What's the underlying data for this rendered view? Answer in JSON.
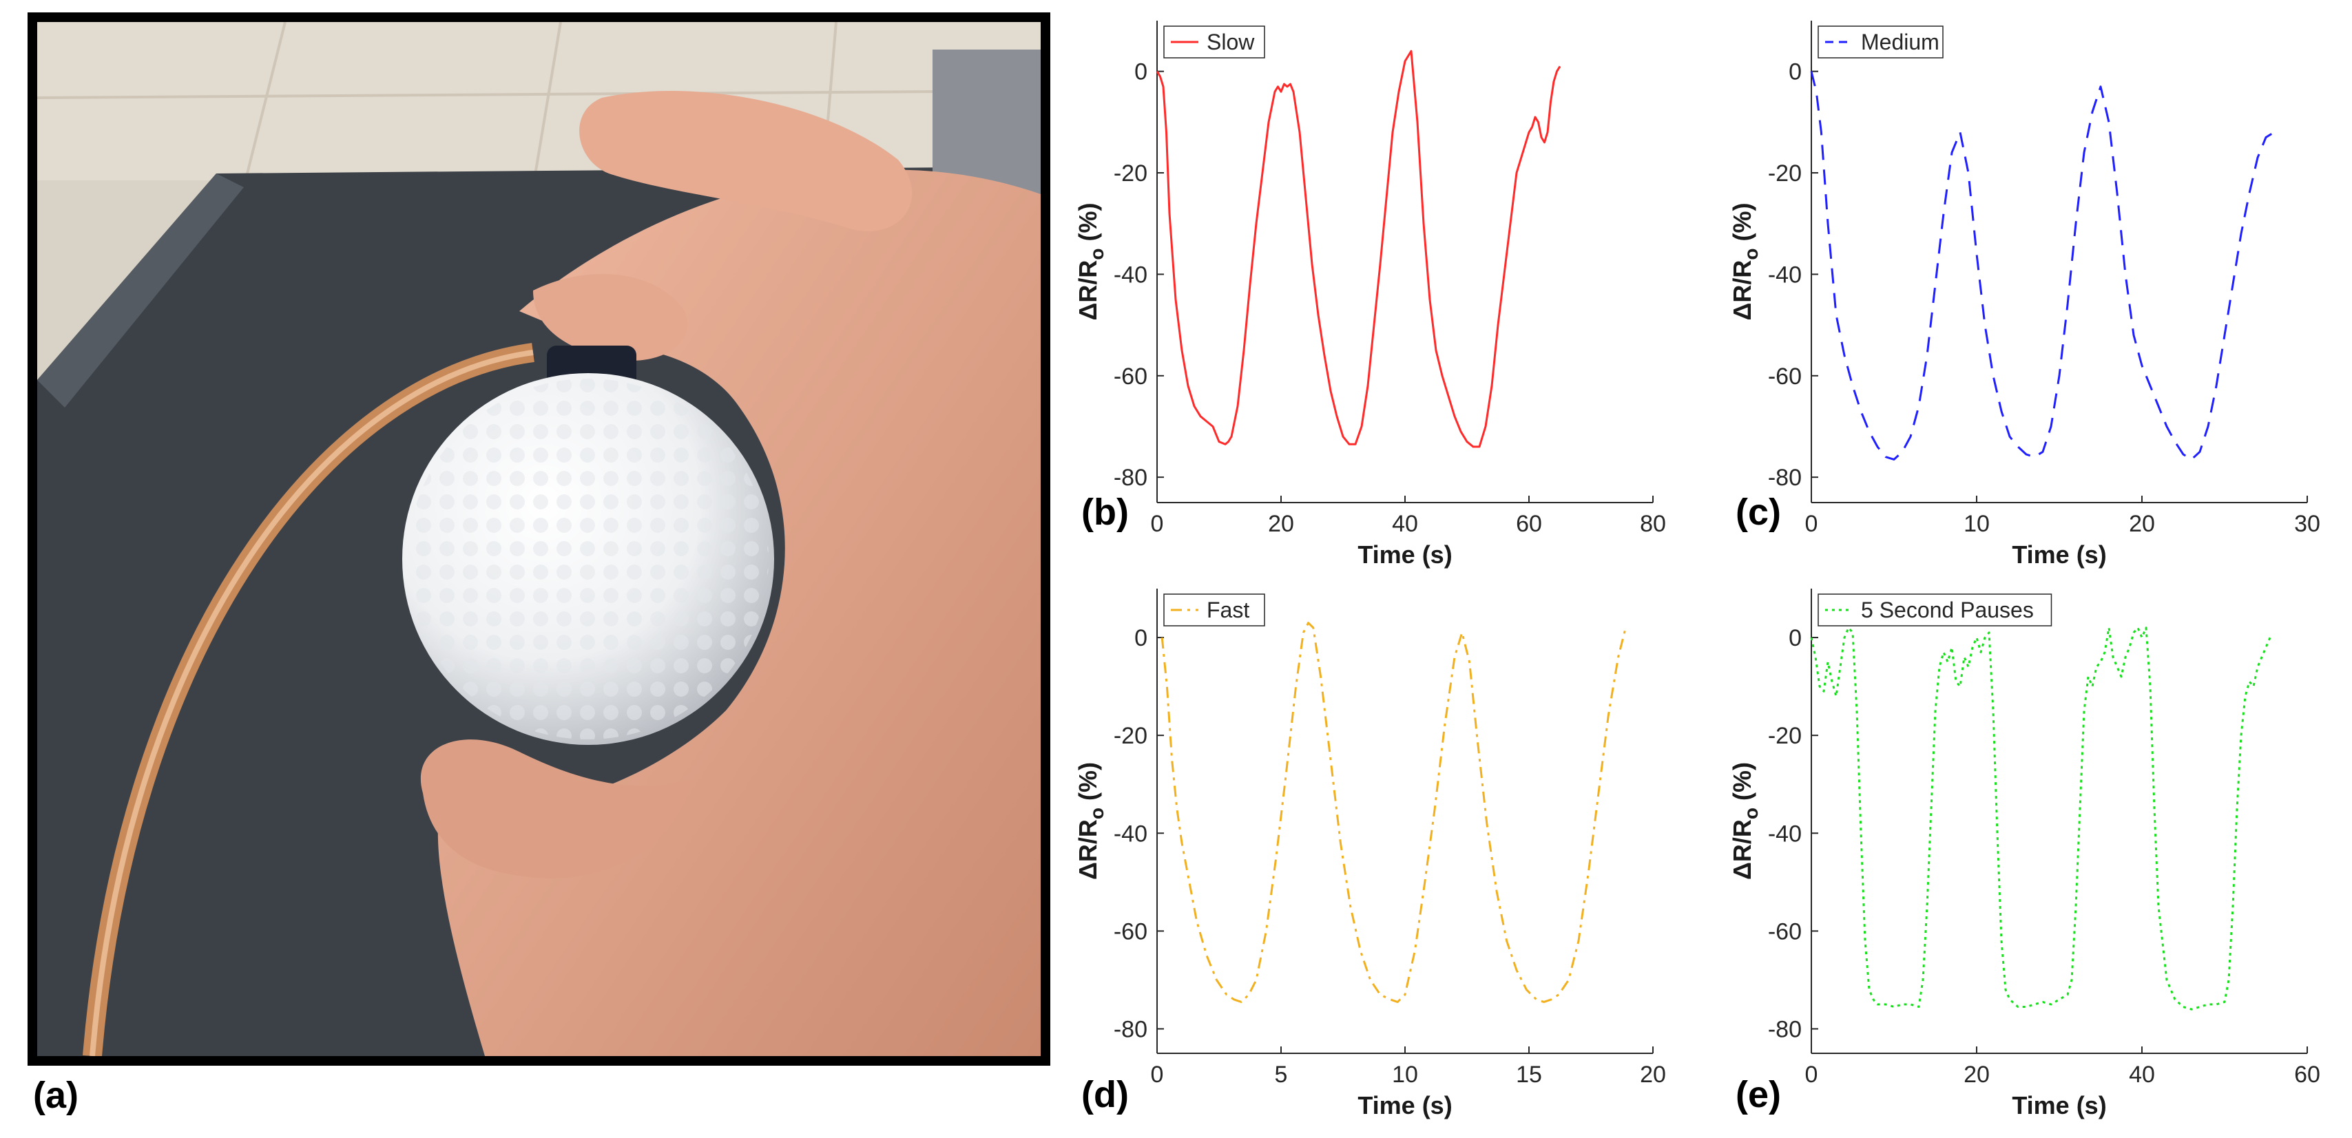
{
  "panels": {
    "a": "(a)",
    "b": "(b)",
    "c": "(c)",
    "d": "(d)",
    "e": "(e)"
  },
  "chart_data": [
    {
      "type": "line",
      "panel": "(b)",
      "xlabel": "Time (s)",
      "ylabel": "ΔR/R",
      "ylabel_sub": "o",
      "ylabel_unit": " (%)",
      "xlim": [
        0,
        80
      ],
      "ylim": [
        -85,
        10
      ],
      "xticks": [
        0,
        20,
        40,
        60,
        80
      ],
      "yticks": [
        0,
        -20,
        -40,
        -60,
        -80
      ],
      "grid": false,
      "legend": "top-left",
      "color": "#ff2a2a",
      "dash": "solid",
      "series": [
        {
          "name": "Slow",
          "x": [
            0,
            0.5,
            1,
            1.5,
            2,
            3,
            4,
            5,
            6,
            7,
            8,
            9,
            10,
            11,
            11.5,
            12,
            13,
            14,
            15,
            16,
            17,
            18,
            19,
            19.5,
            20,
            20.5,
            21,
            21.5,
            22,
            23,
            24,
            25,
            26,
            27,
            28,
            29,
            30,
            31,
            32,
            33,
            34,
            35,
            36,
            37,
            38,
            39,
            40,
            41,
            42,
            43,
            44,
            45,
            46,
            47,
            48,
            49,
            50,
            51,
            52,
            53,
            54,
            55,
            56,
            57,
            58,
            59,
            60,
            60.5,
            61,
            61.5,
            62,
            62.5,
            63,
            63.5,
            64,
            64.5,
            65
          ],
          "values": [
            0,
            -1,
            -3,
            -12,
            -28,
            -45,
            -55,
            -62,
            -66,
            -68,
            -69,
            -70,
            -73,
            -73.5,
            -73,
            -72,
            -66,
            -55,
            -42,
            -30,
            -20,
            -10,
            -4,
            -3,
            -4,
            -2.5,
            -3,
            -2.5,
            -4,
            -12,
            -25,
            -38,
            -48,
            -56,
            -63,
            -68,
            -72,
            -73.5,
            -73.5,
            -70,
            -62,
            -50,
            -38,
            -25,
            -12,
            -4,
            2,
            4,
            -10,
            -30,
            -45,
            -55,
            -60,
            -64,
            -68,
            -71,
            -73,
            -74,
            -74,
            -70,
            -62,
            -50,
            -40,
            -30,
            -20,
            -16,
            -12,
            -11,
            -9,
            -10,
            -13,
            -14,
            -12,
            -6,
            -2,
            0,
            1
          ]
        }
      ]
    },
    {
      "type": "line",
      "panel": "(c)",
      "xlabel": "Time (s)",
      "ylabel": "ΔR/R",
      "ylabel_sub": "o",
      "ylabel_unit": " (%)",
      "xlim": [
        0,
        30
      ],
      "ylim": [
        -85,
        10
      ],
      "xticks": [
        0,
        10,
        20,
        30
      ],
      "yticks": [
        0,
        -20,
        -40,
        -60,
        -80
      ],
      "grid": false,
      "legend": "top-left",
      "color": "#1f1fff",
      "dash": "dashed",
      "series": [
        {
          "name": "Medium",
          "x": [
            0,
            0.3,
            0.6,
            1,
            1.5,
            2,
            2.5,
            3,
            3.5,
            4,
            4.5,
            5,
            5.5,
            6,
            6.5,
            7,
            7.5,
            8,
            8.5,
            9,
            9.5,
            10,
            10.5,
            11,
            11.5,
            12,
            12.5,
            13,
            13.5,
            14,
            14.5,
            15,
            15.5,
            16,
            16.5,
            17,
            17.5,
            18,
            18.5,
            19,
            19.5,
            20,
            20.5,
            21,
            21.5,
            22,
            22.5,
            23,
            23.5,
            24,
            24.5,
            25,
            25.5,
            26,
            26.5,
            27,
            27.5,
            28
          ],
          "values": [
            0,
            -4,
            -12,
            -30,
            -48,
            -56,
            -62,
            -67,
            -71,
            -74,
            -76,
            -76.5,
            -75,
            -72,
            -66,
            -56,
            -42,
            -28,
            -16,
            -12,
            -20,
            -36,
            -50,
            -60,
            -67,
            -72,
            -74,
            -75.5,
            -76,
            -75,
            -70,
            -60,
            -46,
            -30,
            -16,
            -8,
            -3,
            -10,
            -24,
            -40,
            -52,
            -58,
            -62,
            -66,
            -70,
            -73,
            -75.5,
            -76.5,
            -75,
            -70,
            -62,
            -52,
            -42,
            -32,
            -24,
            -17,
            -13,
            -12
          ]
        }
      ]
    },
    {
      "type": "line",
      "panel": "(d)",
      "xlabel": "Time (s)",
      "ylabel": "ΔR/R",
      "ylabel_sub": "o",
      "ylabel_unit": " (%)",
      "xlim": [
        0,
        20
      ],
      "ylim": [
        -85,
        10
      ],
      "xticks": [
        0,
        5,
        10,
        15,
        20
      ],
      "yticks": [
        0,
        -20,
        -40,
        -60,
        -80
      ],
      "grid": false,
      "legend": "top-left",
      "color": "#f2b01e",
      "dash": "dashdot",
      "series": [
        {
          "name": "Fast",
          "x": [
            0.2,
            0.4,
            0.6,
            0.8,
            1.0,
            1.3,
            1.6,
            2.0,
            2.4,
            2.8,
            3.1,
            3.4,
            3.7,
            4.0,
            4.4,
            4.8,
            5.2,
            5.6,
            5.9,
            6.1,
            6.3,
            6.6,
            7.0,
            7.4,
            7.8,
            8.2,
            8.6,
            9.0,
            9.4,
            9.7,
            10.0,
            10.4,
            10.8,
            11.2,
            11.6,
            12.0,
            12.3,
            12.6,
            12.9,
            13.3,
            13.7,
            14.1,
            14.5,
            14.9,
            15.3,
            15.6,
            15.9,
            16.2,
            16.6,
            17.0,
            17.4,
            17.8,
            18.2,
            18.6,
            18.9
          ],
          "values": [
            0,
            -10,
            -25,
            -35,
            -42,
            -50,
            -58,
            -65,
            -70,
            -73,
            -74,
            -74.5,
            -73,
            -70,
            -60,
            -45,
            -28,
            -10,
            1,
            3,
            2,
            -8,
            -25,
            -42,
            -55,
            -64,
            -70,
            -73,
            -74,
            -74.5,
            -73,
            -64,
            -50,
            -35,
            -18,
            -4,
            1,
            -5,
            -20,
            -38,
            -52,
            -62,
            -68,
            -72,
            -74,
            -74.5,
            -74,
            -73,
            -70,
            -62,
            -48,
            -32,
            -16,
            -4,
            2
          ]
        }
      ]
    },
    {
      "type": "line",
      "panel": "(e)",
      "xlabel": "Time (s)",
      "ylabel": "ΔR/R",
      "ylabel_sub": "o",
      "ylabel_unit": " (%)",
      "xlim": [
        0,
        60
      ],
      "ylim": [
        -85,
        10
      ],
      "xticks": [
        0,
        20,
        40,
        60
      ],
      "yticks": [
        0,
        -20,
        -40,
        -60,
        -80
      ],
      "grid": false,
      "legend": "top-left",
      "color": "#15e01a",
      "dash": "dotted",
      "series": [
        {
          "name": "5 Second Pauses",
          "x": [
            0,
            0.5,
            1,
            1.5,
            2,
            2.5,
            3,
            3.5,
            4,
            4.5,
            5,
            5.5,
            6,
            6.5,
            7,
            7.5,
            8,
            9,
            10,
            11,
            12,
            13,
            13.5,
            14,
            14.5,
            15,
            15.5,
            16,
            16.5,
            17,
            17.5,
            18,
            18.5,
            19,
            19.5,
            20,
            20.5,
            21,
            21.5,
            22,
            22.5,
            23,
            23.5,
            24,
            25,
            26,
            27,
            28,
            29,
            30,
            31,
            31.5,
            32,
            32.5,
            33,
            33.5,
            34,
            34.5,
            35,
            35.5,
            36,
            36.5,
            37,
            37.5,
            38,
            38.5,
            39,
            39.5,
            40,
            40.5,
            41,
            41.5,
            42,
            43,
            44,
            45,
            46,
            47,
            48,
            49,
            50,
            50.5,
            51,
            51.5,
            52,
            52.5,
            53,
            53.5,
            54,
            54.5,
            55,
            55.5
          ],
          "values": [
            0,
            -4,
            -10,
            -11,
            -5,
            -9,
            -12,
            -6,
            0,
            2,
            1,
            -15,
            -40,
            -62,
            -72,
            -74,
            -75,
            -75,
            -75.5,
            -75,
            -75,
            -75.5,
            -70,
            -55,
            -35,
            -15,
            -6,
            -3,
            -5,
            -2,
            -9,
            -10,
            -4,
            -6,
            -2,
            0,
            -3,
            0,
            1,
            -15,
            -40,
            -62,
            -72,
            -74,
            -75.5,
            -75.5,
            -75,
            -74.5,
            -75,
            -74,
            -73,
            -70,
            -55,
            -35,
            -15,
            -8,
            -10,
            -6,
            -5,
            -3,
            2,
            -4,
            -6,
            -8,
            -4,
            -2,
            1,
            2,
            0,
            2,
            -10,
            -35,
            -55,
            -70,
            -74,
            -75.5,
            -76,
            -75.5,
            -75,
            -75,
            -74.5,
            -70,
            -55,
            -35,
            -20,
            -12,
            -9,
            -10,
            -6,
            -4,
            -2,
            0
          ]
        }
      ]
    }
  ]
}
